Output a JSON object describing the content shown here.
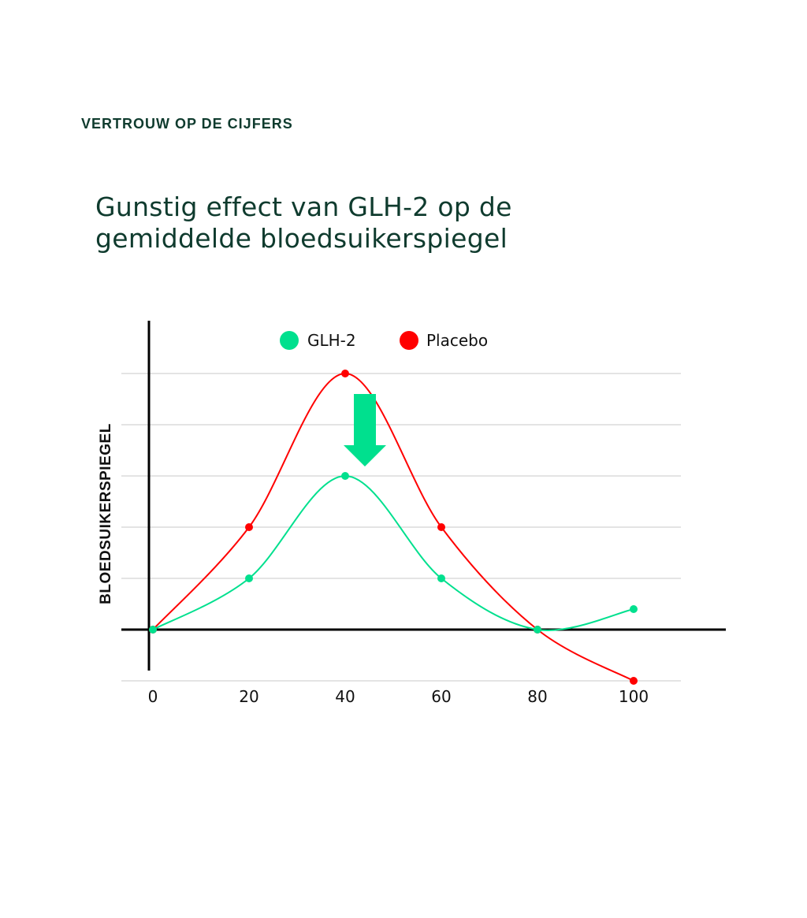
{
  "eyebrow": "VERTROUW OP DE CIJFERS",
  "title": {
    "line1": "Gunstig effect van GLH-2 op de",
    "line2": "gemiddelde bloedsuikerspiegel"
  },
  "legend": {
    "items": [
      {
        "label": "GLH-2",
        "color": "#00e08e"
      },
      {
        "label": "Placebo",
        "color": "#ff0000"
      }
    ]
  },
  "axes": {
    "ylabel": "BLOEDSUIKERSPIEGEL",
    "xticks": [
      "0",
      "20",
      "40",
      "60",
      "80",
      "100"
    ]
  },
  "chart_data": {
    "type": "line",
    "title": "Gunstig effect van GLH-2 op de gemiddelde bloedsuikerspiegel",
    "xlabel": "",
    "ylabel": "BLOEDSUIKERSPIEGEL",
    "x": [
      0,
      20,
      40,
      60,
      80,
      100
    ],
    "series": [
      {
        "name": "GLH-2",
        "color": "#00e08e",
        "values": [
          0,
          1,
          3,
          1,
          0,
          0.4
        ]
      },
      {
        "name": "Placebo",
        "color": "#ff0000",
        "values": [
          0,
          2,
          5,
          2,
          0,
          -1
        ]
      }
    ],
    "xlim": [
      -6,
      110
    ],
    "ylim": [
      -1,
      5
    ],
    "grid": "horizontal",
    "smooth": true,
    "legend_position": "top",
    "annotations": [
      {
        "type": "down-arrow",
        "x": 44,
        "from": 4.6,
        "to": 3.2,
        "color": "#00e08e"
      }
    ]
  }
}
